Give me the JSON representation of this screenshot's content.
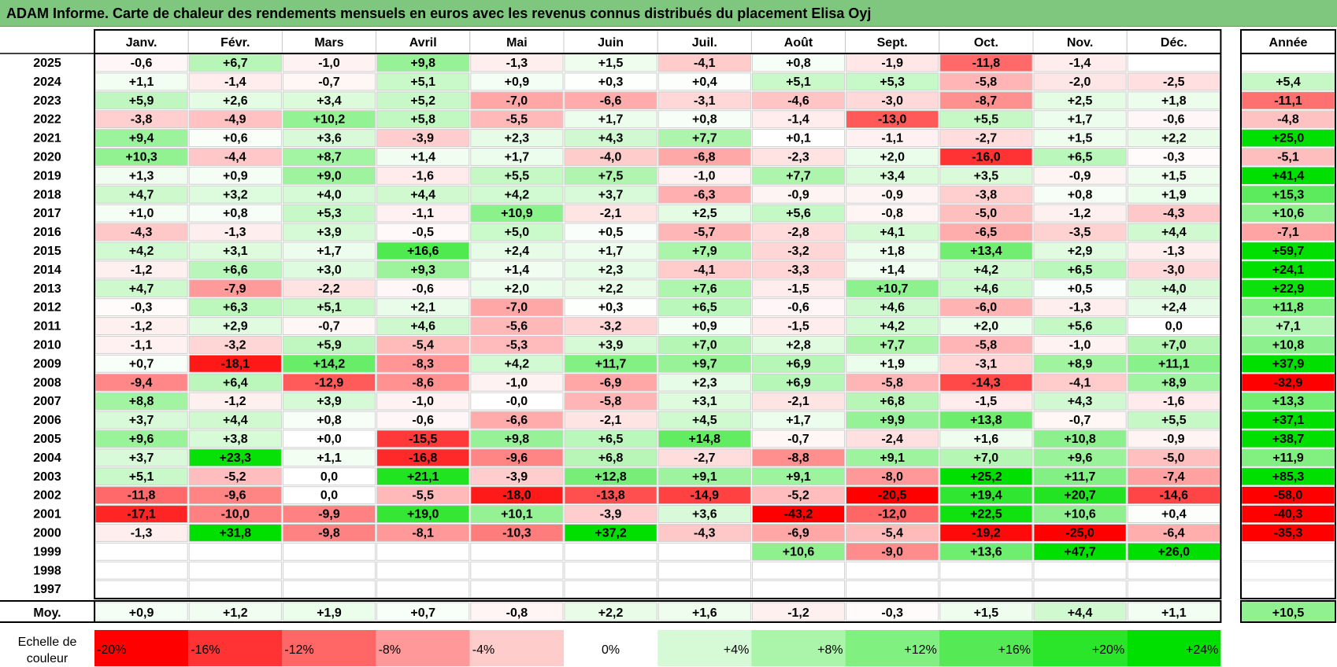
{
  "title": "ADAM Informe. Carte de chaleur des rendements mensuels en euros avec les revenus connus distribués du placement Elisa Oyj",
  "chart_data": {
    "type": "heatmap",
    "months": [
      "Janv.",
      "Févr.",
      "Mars",
      "Avril",
      "Mai",
      "Juin",
      "Juil.",
      "Août",
      "Sept.",
      "Oct.",
      "Nov.",
      "Déc."
    ],
    "year_header": "Année",
    "rows": [
      {
        "year": "2025",
        "values": [
          "-0,6",
          "+6,7",
          "-1,0",
          "+9,8",
          "-1,3",
          "+1,5",
          "-4,1",
          "+0,8",
          "-1,9",
          "-11,8",
          "-1,4",
          ""
        ],
        "annual": ""
      },
      {
        "year": "2024",
        "values": [
          "+1,1",
          "-1,4",
          "-0,7",
          "+5,1",
          "+0,9",
          "+0,3",
          "+0,4",
          "+5,1",
          "+5,3",
          "-5,8",
          "-2,0",
          "-2,5"
        ],
        "annual": "+5,4"
      },
      {
        "year": "2023",
        "values": [
          "+5,9",
          "+2,6",
          "+3,4",
          "+5,2",
          "-7,0",
          "-6,6",
          "-3,1",
          "-4,6",
          "-3,0",
          "-8,7",
          "+2,5",
          "+1,8"
        ],
        "annual": "-11,1"
      },
      {
        "year": "2022",
        "values": [
          "-3,8",
          "-4,9",
          "+10,2",
          "+5,8",
          "-5,5",
          "+1,7",
          "+0,8",
          "-1,4",
          "-13,0",
          "+5,5",
          "+1,7",
          "-0,6"
        ],
        "annual": "-4,8"
      },
      {
        "year": "2021",
        "values": [
          "+9,4",
          "+0,6",
          "+3,6",
          "-3,9",
          "+2,3",
          "+4,3",
          "+7,7",
          "+0,1",
          "-1,1",
          "-2,7",
          "+1,5",
          "+2,2"
        ],
        "annual": "+25,0"
      },
      {
        "year": "2020",
        "values": [
          "+10,3",
          "-4,4",
          "+8,7",
          "+1,4",
          "+1,7",
          "-4,0",
          "-6,8",
          "-2,3",
          "+2,0",
          "-16,0",
          "+6,5",
          "-0,3"
        ],
        "annual": "-5,1"
      },
      {
        "year": "2019",
        "values": [
          "+1,3",
          "+0,9",
          "+9,0",
          "-1,6",
          "+5,5",
          "+7,5",
          "-1,0",
          "+7,7",
          "+3,4",
          "+3,5",
          "-0,9",
          "+1,5"
        ],
        "annual": "+41,4"
      },
      {
        "year": "2018",
        "values": [
          "+4,7",
          "+3,2",
          "+4,0",
          "+4,4",
          "+4,2",
          "+3,7",
          "-6,3",
          "-0,9",
          "-0,9",
          "-3,8",
          "+0,8",
          "+1,9"
        ],
        "annual": "+15,3"
      },
      {
        "year": "2017",
        "values": [
          "+1,0",
          "+0,8",
          "+5,3",
          "-1,1",
          "+10,9",
          "-2,1",
          "+2,5",
          "+5,6",
          "-0,8",
          "-5,0",
          "-1,2",
          "-4,3"
        ],
        "annual": "+10,6"
      },
      {
        "year": "2016",
        "values": [
          "-4,3",
          "-1,3",
          "+3,9",
          "-0,5",
          "+5,0",
          "+0,5",
          "-5,7",
          "-2,8",
          "+4,1",
          "-6,5",
          "-3,5",
          "+4,4"
        ],
        "annual": "-7,1"
      },
      {
        "year": "2015",
        "values": [
          "+4,2",
          "+3,1",
          "+1,7",
          "+16,6",
          "+2,4",
          "+1,7",
          "+7,9",
          "-3,2",
          "+1,8",
          "+13,4",
          "+2,9",
          "-1,3"
        ],
        "annual": "+59,7"
      },
      {
        "year": "2014",
        "values": [
          "-1,2",
          "+6,6",
          "+3,0",
          "+9,3",
          "+1,4",
          "+2,3",
          "-4,1",
          "-3,3",
          "+1,4",
          "+4,2",
          "+6,5",
          "-3,0"
        ],
        "annual": "+24,1"
      },
      {
        "year": "2013",
        "values": [
          "+4,7",
          "-7,9",
          "-2,2",
          "-0,6",
          "+2,0",
          "+2,2",
          "+7,6",
          "-1,5",
          "+10,7",
          "+4,6",
          "+0,5",
          "+4,0"
        ],
        "annual": "+22,9"
      },
      {
        "year": "2012",
        "values": [
          "-0,3",
          "+6,3",
          "+5,1",
          "+2,1",
          "-7,0",
          "+0,3",
          "+6,5",
          "-0,6",
          "+4,6",
          "-6,0",
          "-1,3",
          "+2,4"
        ],
        "annual": "+11,8"
      },
      {
        "year": "2011",
        "values": [
          "-1,2",
          "+2,9",
          "-0,7",
          "+4,6",
          "-5,6",
          "-3,2",
          "+0,9",
          "-1,5",
          "+4,2",
          "+2,0",
          "+5,6",
          "0,0"
        ],
        "annual": "+7,1"
      },
      {
        "year": "2010",
        "values": [
          "-1,1",
          "-3,2",
          "+5,9",
          "-5,4",
          "-5,3",
          "+3,9",
          "+7,0",
          "+2,8",
          "+7,7",
          "-5,8",
          "-1,0",
          "+7,0"
        ],
        "annual": "+10,8"
      },
      {
        "year": "2009",
        "values": [
          "+0,7",
          "-18,1",
          "+14,2",
          "-8,3",
          "+4,2",
          "+11,7",
          "+9,7",
          "+6,9",
          "+1,9",
          "-3,1",
          "+8,9",
          "+11,1"
        ],
        "annual": "+37,9"
      },
      {
        "year": "2008",
        "values": [
          "-9,4",
          "+6,4",
          "-12,9",
          "-8,6",
          "-1,0",
          "-6,9",
          "+2,3",
          "+6,9",
          "-5,8",
          "-14,3",
          "-4,1",
          "+8,9"
        ],
        "annual": "-32,9"
      },
      {
        "year": "2007",
        "values": [
          "+8,8",
          "-1,2",
          "+3,9",
          "-1,0",
          "-0,0",
          "-5,8",
          "+3,1",
          "-2,1",
          "+6,8",
          "-1,5",
          "+4,3",
          "-1,6"
        ],
        "annual": "+13,3"
      },
      {
        "year": "2006",
        "values": [
          "+3,7",
          "+4,4",
          "+0,8",
          "-0,6",
          "-6,6",
          "-2,1",
          "+4,5",
          "+1,7",
          "+9,9",
          "+13,8",
          "-0,7",
          "+5,5"
        ],
        "annual": "+37,1"
      },
      {
        "year": "2005",
        "values": [
          "+9,6",
          "+3,8",
          "+0,0",
          "-15,5",
          "+9,8",
          "+6,5",
          "+14,8",
          "-0,7",
          "-2,4",
          "+1,6",
          "+10,8",
          "-0,9"
        ],
        "annual": "+38,7"
      },
      {
        "year": "2004",
        "values": [
          "+3,7",
          "+23,3",
          "+1,1",
          "-16,8",
          "-9,6",
          "+6,8",
          "-2,7",
          "-8,8",
          "+9,1",
          "+7,0",
          "+9,6",
          "-5,0"
        ],
        "annual": "+11,9"
      },
      {
        "year": "2003",
        "values": [
          "+5,1",
          "-5,2",
          "0,0",
          "+21,1",
          "-3,9",
          "+12,8",
          "+9,1",
          "+9,1",
          "-8,0",
          "+25,2",
          "+11,7",
          "-7,4"
        ],
        "annual": "+85,3"
      },
      {
        "year": "2002",
        "values": [
          "-11,8",
          "-9,6",
          "0,0",
          "-5,5",
          "-18,0",
          "-13,8",
          "-14,9",
          "-5,2",
          "-20,5",
          "+19,4",
          "+20,7",
          "-14,6"
        ],
        "annual": "-58,0"
      },
      {
        "year": "2001",
        "values": [
          "-17,1",
          "-10,0",
          "-9,9",
          "+19,0",
          "+10,1",
          "-3,9",
          "+3,6",
          "-43,2",
          "-12,0",
          "+22,5",
          "+10,6",
          "+0,4"
        ],
        "annual": "-40,3"
      },
      {
        "year": "2000",
        "values": [
          "-1,3",
          "+31,8",
          "-9,8",
          "-8,1",
          "-10,3",
          "+37,2",
          "-4,3",
          "-6,9",
          "-5,4",
          "-19,2",
          "-25,0",
          "-6,4"
        ],
        "annual": "-35,3"
      },
      {
        "year": "1999",
        "values": [
          "",
          "",
          "",
          "",
          "",
          "",
          "",
          "+10,6",
          "-9,0",
          "+13,6",
          "+47,7",
          "+26,0"
        ],
        "annual": ""
      },
      {
        "year": "1998",
        "values": [
          "",
          "",
          "",
          "",
          "",
          "",
          "",
          "",
          "",
          "",
          "",
          ""
        ],
        "annual": ""
      },
      {
        "year": "1997",
        "values": [
          "",
          "",
          "",
          "",
          "",
          "",
          "",
          "",
          "",
          "",
          "",
          ""
        ],
        "annual": ""
      }
    ],
    "average": {
      "label": "Moy.",
      "values": [
        "+0,9",
        "+1,2",
        "+1,9",
        "+0,7",
        "-0,8",
        "+2,2",
        "+1,6",
        "-1,2",
        "-0,3",
        "+1,5",
        "+4,4",
        "+1,1"
      ],
      "annual": "+10,5"
    },
    "color_scale": {
      "label": "Echelle de couleur",
      "steps": [
        {
          "label": "-20%",
          "value": -20
        },
        {
          "label": "-16%",
          "value": -16
        },
        {
          "label": "-12%",
          "value": -12
        },
        {
          "label": "-8%",
          "value": -8
        },
        {
          "label": "-4%",
          "value": -4
        },
        {
          "label": "0%",
          "value": 0
        },
        {
          "label": "+4%",
          "value": 4
        },
        {
          "label": "+8%",
          "value": 8
        },
        {
          "label": "+12%",
          "value": 12
        },
        {
          "label": "+16%",
          "value": 16
        },
        {
          "label": "+20%",
          "value": 20
        },
        {
          "label": "+24%",
          "value": 24
        }
      ],
      "negative_color": "#ff0000",
      "positive_color": "#00e000",
      "neutral_color": "#ffffff"
    }
  }
}
